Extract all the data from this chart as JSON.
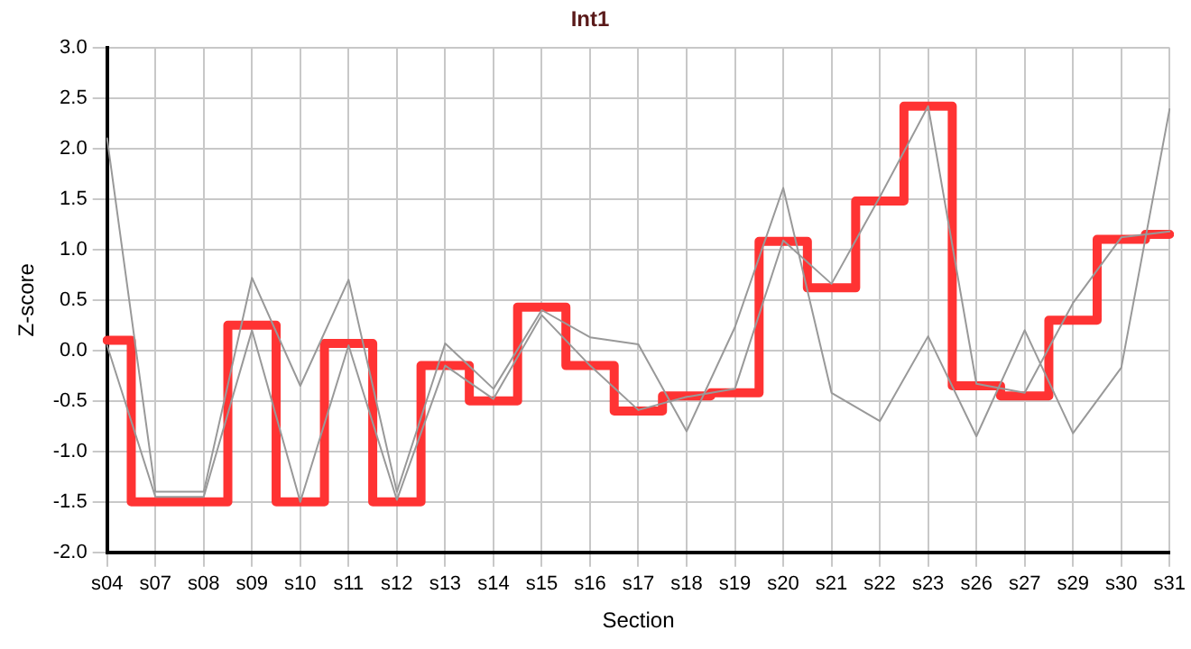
{
  "chart_data": {
    "type": "line",
    "title": "Int1",
    "xlabel": "Section",
    "ylabel": "Z-score",
    "categories": [
      "s04",
      "s07",
      "s08",
      "s09",
      "s10",
      "s11",
      "s12",
      "s13",
      "s14",
      "s15",
      "s16",
      "s17",
      "s18",
      "s19",
      "s20",
      "s21",
      "s22",
      "s23",
      "s26",
      "s27",
      "s29",
      "s30",
      "s31"
    ],
    "series": [
      {
        "type": "line",
        "color": "#999999",
        "values": [
          2.1,
          -1.4,
          -1.4,
          0.72,
          -0.35,
          0.7,
          -1.4,
          0.07,
          -0.38,
          0.4,
          0.13,
          0.06,
          -0.8,
          0.23,
          1.61,
          -0.42,
          -0.7,
          0.14,
          -0.85,
          0.2,
          -0.82,
          -0.17,
          2.39
        ]
      },
      {
        "type": "line",
        "color": "#999999",
        "values": [
          0.05,
          -1.45,
          -1.45,
          0.2,
          -1.5,
          0.05,
          -1.48,
          -0.15,
          -0.48,
          0.35,
          -0.15,
          -0.59,
          -0.46,
          -0.38,
          1.09,
          0.66,
          1.52,
          2.42,
          -0.33,
          -0.42,
          0.47,
          1.12,
          1.18
        ]
      },
      {
        "type": "step",
        "color": "#ff3333",
        "values": [
          0.1,
          -1.5,
          -1.5,
          0.25,
          -1.5,
          0.07,
          -1.5,
          -0.15,
          -0.5,
          0.43,
          -0.15,
          -0.6,
          -0.45,
          -0.42,
          1.08,
          0.62,
          1.48,
          2.42,
          -0.35,
          -0.45,
          0.3,
          1.1,
          1.15
        ]
      }
    ],
    "ylim": [
      -2,
      3
    ],
    "yticks": [
      {
        "value": -2,
        "label": "-2.0"
      },
      -1.5,
      {
        "value": -1,
        "label": "-1.0"
      },
      -0.5,
      {
        "value": 0,
        "label": "0.0"
      },
      0.5,
      {
        "value": 1,
        "label": "1.0"
      },
      1.5,
      {
        "value": 2,
        "label": "2.0"
      },
      2.5,
      {
        "value": 3,
        "label": "3.0"
      }
    ],
    "grid": true,
    "legend": false,
    "marker": "none",
    "line_style": "solid"
  }
}
